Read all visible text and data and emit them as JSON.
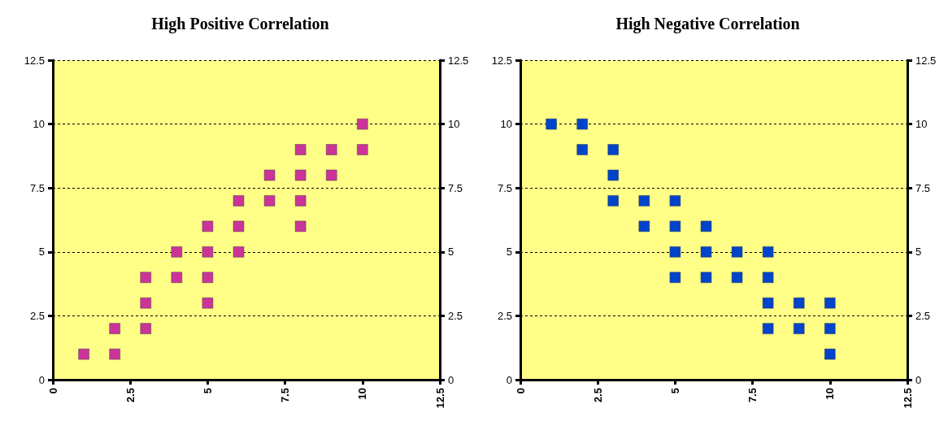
{
  "chart_data": [
    {
      "type": "scatter",
      "title": "High Positive Correlation",
      "marker": "square",
      "grid": "y",
      "xlim": [
        0,
        12.5
      ],
      "xticks": [
        0,
        2.5,
        5,
        7.5,
        10,
        12.5
      ],
      "ylim": [
        0,
        12.5
      ],
      "yticks": [
        0,
        2.5,
        5,
        7.5,
        10,
        12.5
      ],
      "y2lim": [
        0,
        12.5
      ],
      "y2ticks": [
        0,
        2.5,
        5,
        7.5,
        10,
        12.5
      ],
      "series": [
        {
          "color": "#cc3399",
          "x": [
            1,
            2,
            2,
            3,
            3,
            3,
            4,
            4,
            5,
            5,
            5,
            5,
            6,
            6,
            6,
            7,
            7,
            8,
            8,
            8,
            8,
            9,
            9,
            10,
            10
          ],
          "values": [
            1,
            1,
            2,
            2,
            3,
            4,
            4,
            5,
            3,
            4,
            5,
            6,
            5,
            6,
            7,
            7,
            8,
            6,
            7,
            8,
            9,
            8,
            9,
            9,
            10
          ]
        }
      ]
    },
    {
      "type": "scatter",
      "title": "High Negative Correlation",
      "marker": "square",
      "grid": "y",
      "xlim": [
        0,
        12.5
      ],
      "xticks": [
        0,
        2.5,
        5,
        7.5,
        10,
        12.5
      ],
      "ylim": [
        0,
        12.5
      ],
      "yticks": [
        0,
        2.5,
        5,
        7.5,
        10,
        12.5
      ],
      "y2lim": [
        0,
        12.5
      ],
      "y2ticks": [
        0,
        2.5,
        5,
        7.5,
        10,
        12.5
      ],
      "series": [
        {
          "color": "#0044cc",
          "x": [
            1,
            2,
            2,
            3,
            3,
            3,
            4,
            4,
            5,
            5,
            5,
            5,
            6,
            6,
            6,
            7,
            7,
            8,
            8,
            8,
            8,
            9,
            9,
            10,
            10,
            10
          ],
          "values": [
            10,
            10,
            9,
            9,
            8,
            7,
            7,
            6,
            7,
            6,
            5,
            4,
            6,
            5,
            4,
            5,
            4,
            5,
            4,
            3,
            2,
            3,
            2,
            3,
            2,
            1
          ]
        }
      ]
    }
  ]
}
